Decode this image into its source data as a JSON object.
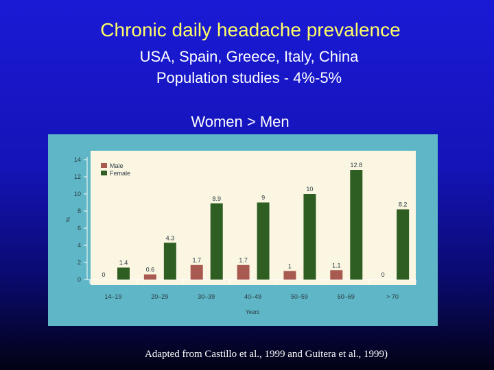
{
  "slide": {
    "title": "Chronic daily headache prevalence",
    "subtitle_line1": "USA, Spain, Greece, Italy, China",
    "subtitle_line2": "Population studies - 4%-5%",
    "note": "Women > Men",
    "source": "Adapted from Castillo et al., 1999 and Guitera et al., 1999)"
  },
  "colors": {
    "male": "#a85a50",
    "female": "#2f5e22",
    "panel": "#5fb6c6",
    "plot_bg": "#fbf6e2"
  },
  "chart_data": {
    "type": "bar",
    "categories": [
      "14–19",
      "20–29",
      "30–39",
      "40–49",
      "50–59",
      "60–69",
      "> 70"
    ],
    "series": [
      {
        "name": "Male",
        "values": [
          0,
          0.6,
          1.7,
          1.7,
          1,
          1.1,
          0
        ],
        "labels": [
          "0",
          "0.6",
          "1.7",
          "1.7",
          "1",
          "1.1",
          "0"
        ]
      },
      {
        "name": "Female",
        "values": [
          1.4,
          4.3,
          8.9,
          9,
          10,
          12.8,
          8.2
        ],
        "labels": [
          "1.4",
          "4.3",
          "8.9",
          "9",
          "10",
          "12.8",
          "8.2"
        ]
      }
    ],
    "xlabel": "Years",
    "ylabel": "%",
    "ylim": [
      0,
      14
    ],
    "yticks": [
      0,
      2,
      4,
      6,
      8,
      10,
      12,
      14
    ],
    "legend_position": "top-left",
    "grid": false
  }
}
